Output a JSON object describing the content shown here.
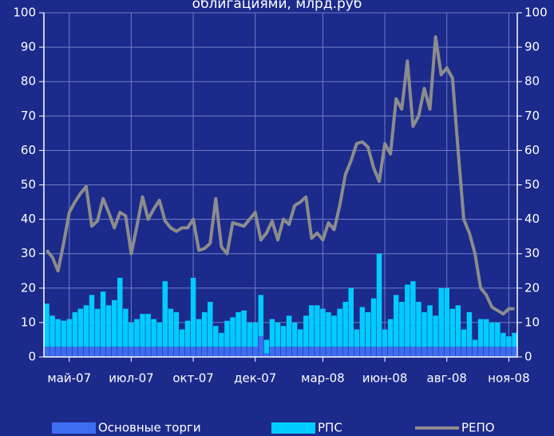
{
  "chart_data": {
    "type": "bar+line",
    "title": "облигациями, млрд.руб",
    "categories": [
      null,
      null,
      null,
      null,
      "май-07",
      null,
      null,
      null,
      null,
      null,
      null,
      null,
      null,
      null,
      null,
      "июл-07",
      null,
      null,
      null,
      null,
      null,
      null,
      null,
      null,
      null,
      null,
      "окт-07",
      null,
      null,
      null,
      null,
      null,
      null,
      null,
      null,
      null,
      null,
      "дек-07",
      null,
      null,
      null,
      null,
      null,
      null,
      null,
      null,
      null,
      null,
      null,
      "мар-08",
      null,
      null,
      null,
      null,
      null,
      null,
      null,
      null,
      null,
      null,
      "июн-08",
      null,
      null,
      null,
      null,
      null,
      null,
      null,
      null,
      null,
      null,
      "авг-08",
      null,
      null,
      null,
      null,
      null,
      null,
      null,
      null,
      null,
      null,
      "ноя-08",
      null
    ],
    "series": [
      {
        "name": "Основные торги",
        "kind": "bar",
        "color": "#3d6ef2",
        "values": [
          3,
          3,
          3,
          3,
          3,
          3,
          3,
          3,
          3,
          3,
          3,
          3,
          3,
          3,
          3,
          3,
          3,
          3,
          3,
          3,
          3,
          3,
          3,
          3,
          3,
          3,
          3,
          3,
          3,
          3,
          3,
          3,
          3,
          3,
          3,
          3,
          3,
          3,
          6,
          1,
          3,
          3,
          3,
          3,
          3,
          3,
          3,
          3,
          3,
          3,
          3,
          3,
          3,
          3,
          3,
          3,
          3,
          3,
          3,
          3,
          3,
          3,
          3,
          3,
          3,
          3,
          3,
          3,
          3,
          3,
          3,
          3,
          3,
          3,
          3,
          3,
          3,
          3,
          3,
          3,
          3,
          3,
          3,
          3
        ]
      },
      {
        "name": "РПС",
        "kind": "bar",
        "color": "#00ccff",
        "values": [
          12.5,
          9,
          8,
          7.5,
          8,
          10,
          11,
          12,
          15,
          11,
          16,
          12,
          13.5,
          20,
          11,
          7,
          8,
          9.5,
          9.5,
          8,
          7,
          19,
          11,
          10,
          5,
          7.5,
          20,
          8,
          10,
          13,
          6,
          4,
          7.5,
          8.5,
          10,
          10.5,
          7,
          7,
          12,
          4,
          8,
          7,
          6,
          9,
          7,
          5,
          9,
          12,
          12,
          11,
          10,
          9,
          11,
          13,
          17,
          5,
          11.5,
          10,
          14,
          27,
          5,
          8,
          15,
          13,
          18,
          19,
          13,
          10,
          12,
          9,
          17,
          17,
          11,
          12,
          5,
          10,
          2,
          8,
          8,
          7,
          7,
          4,
          3,
          4
        ]
      },
      {
        "name": "РЕПО",
        "kind": "line",
        "color": "#8c8c8c",
        "values": [
          31,
          29,
          25,
          33,
          42,
          45,
          47.5,
          49.5,
          38,
          39.5,
          46,
          42,
          37.5,
          42,
          41,
          30,
          38,
          46.5,
          40,
          43,
          45.5,
          39.5,
          37.5,
          36.5,
          37.5,
          37.5,
          40,
          31,
          31.5,
          33,
          46,
          32,
          30,
          39,
          38.5,
          38,
          40,
          42,
          34,
          36,
          39.5,
          34,
          40,
          38.5,
          44,
          45,
          46.5,
          34.5,
          36,
          34,
          39,
          37,
          44,
          53,
          57,
          62,
          62.5,
          61,
          55,
          51,
          62,
          59,
          75,
          72,
          86,
          67,
          70,
          78,
          72,
          93,
          82,
          84,
          81,
          60,
          40,
          36,
          30,
          20,
          18,
          14.5,
          13.5,
          12.5,
          14,
          14
        ]
      }
    ],
    "ylim": [
      0,
      100
    ],
    "yticks": [
      0,
      10,
      20,
      30,
      40,
      50,
      60,
      70,
      80,
      90,
      100
    ],
    "y2lim": [
      0,
      100
    ],
    "y2ticks": [
      0,
      10,
      20,
      30,
      40,
      50,
      60,
      70,
      80,
      90,
      100
    ],
    "grid": true
  }
}
